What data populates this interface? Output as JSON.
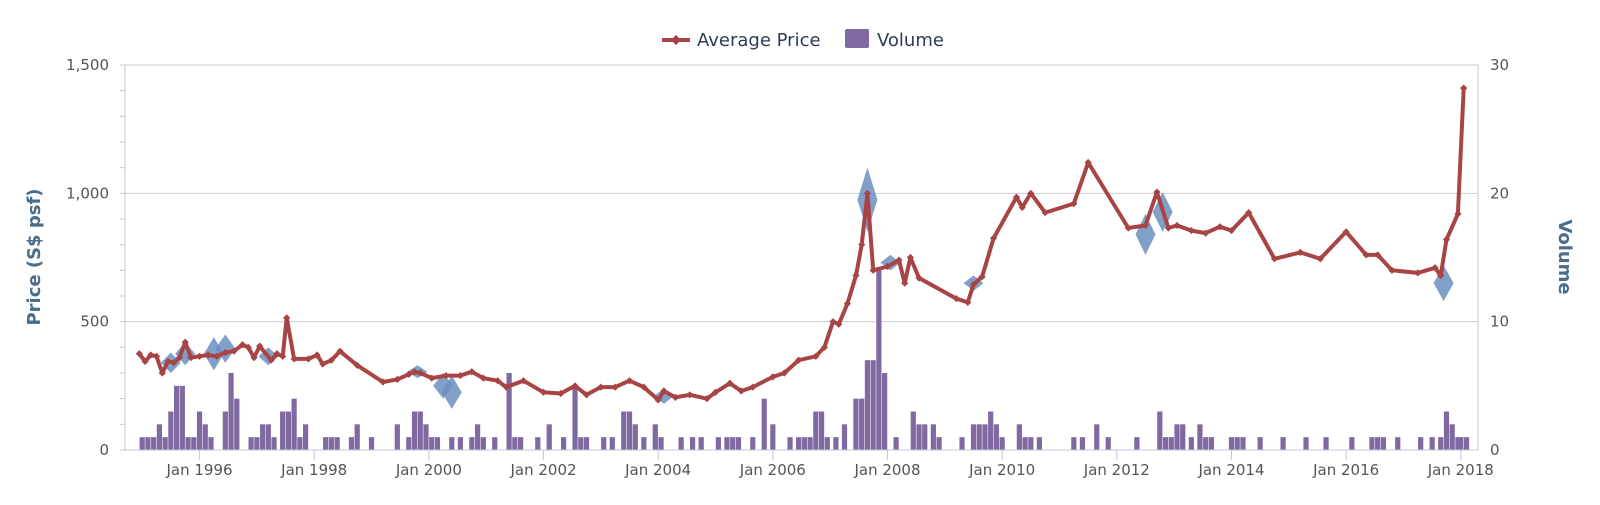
{
  "chart_data": {
    "type": "line+bar",
    "legend": {
      "placement": "top-center",
      "items": [
        {
          "name": "Average Price",
          "color": "#a84444",
          "marker": "diamond"
        },
        {
          "name": "Volume",
          "color": "#8068a0"
        }
      ]
    },
    "left_axis": {
      "title": "Price (S$ psf)",
      "range": [
        0,
        1500
      ],
      "ticks": [
        0,
        500,
        1000,
        1500
      ],
      "tick_labels": [
        "0",
        "500",
        "1,000",
        "1,500"
      ]
    },
    "right_axis": {
      "title": "Volume",
      "range": [
        0,
        30
      ],
      "ticks": [
        0,
        10,
        20,
        30
      ],
      "tick_labels": [
        "0",
        "10",
        "20",
        "30"
      ]
    },
    "x_axis": {
      "range": [
        1994.7,
        2018.3
      ],
      "ticks": [
        1996,
        1998,
        2000,
        2002,
        2004,
        2006,
        2008,
        2010,
        2012,
        2014,
        2016,
        2018
      ],
      "tick_labels": [
        "Jan 1996",
        "Jan 1998",
        "Jan 2000",
        "Jan 2002",
        "Jan 2004",
        "Jan 2006",
        "Jan 2008",
        "Jan 2010",
        "Jan 2012",
        "Jan 2014",
        "Jan 2016",
        "Jan 2018"
      ]
    },
    "grid": true,
    "colors": {
      "price": "#a84444",
      "volume": "#8068a0",
      "range": "#6b8fc0",
      "grid": "#c8ccd8",
      "axis": "#c0c8d8"
    },
    "price_series": [
      [
        1994.95,
        375
      ],
      [
        1995.05,
        345
      ],
      [
        1995.15,
        370
      ],
      [
        1995.25,
        365
      ],
      [
        1995.35,
        300
      ],
      [
        1995.45,
        345
      ],
      [
        1995.55,
        340
      ],
      [
        1995.65,
        360
      ],
      [
        1995.75,
        420
      ],
      [
        1995.85,
        360
      ],
      [
        1996.0,
        365
      ],
      [
        1996.15,
        370
      ],
      [
        1996.3,
        365
      ],
      [
        1996.45,
        380
      ],
      [
        1996.6,
        385
      ],
      [
        1996.75,
        410
      ],
      [
        1996.85,
        400
      ],
      [
        1996.95,
        360
      ],
      [
        1997.05,
        405
      ],
      [
        1997.25,
        350
      ],
      [
        1997.35,
        375
      ],
      [
        1997.45,
        365
      ],
      [
        1997.52,
        515
      ],
      [
        1997.65,
        355
      ],
      [
        1997.9,
        355
      ],
      [
        1998.05,
        370
      ],
      [
        1998.15,
        335
      ],
      [
        1998.3,
        350
      ],
      [
        1998.45,
        385
      ],
      [
        1998.75,
        330
      ],
      [
        1999.2,
        265
      ],
      [
        1999.45,
        275
      ],
      [
        1999.65,
        295
      ],
      [
        1999.75,
        305
      ],
      [
        1999.85,
        300
      ],
      [
        2000.05,
        280
      ],
      [
        2000.3,
        290
      ],
      [
        2000.55,
        290
      ],
      [
        2000.75,
        305
      ],
      [
        2000.95,
        280
      ],
      [
        2001.2,
        270
      ],
      [
        2001.35,
        245
      ],
      [
        2001.65,
        270
      ],
      [
        2002.0,
        225
      ],
      [
        2002.3,
        220
      ],
      [
        2002.55,
        250
      ],
      [
        2002.75,
        215
      ],
      [
        2003.0,
        245
      ],
      [
        2003.25,
        245
      ],
      [
        2003.5,
        270
      ],
      [
        2003.75,
        245
      ],
      [
        2004.0,
        195
      ],
      [
        2004.1,
        230
      ],
      [
        2004.3,
        205
      ],
      [
        2004.55,
        215
      ],
      [
        2004.85,
        200
      ],
      [
        2005.0,
        225
      ],
      [
        2005.25,
        260
      ],
      [
        2005.45,
        230
      ],
      [
        2005.65,
        245
      ],
      [
        2006.0,
        285
      ],
      [
        2006.2,
        300
      ],
      [
        2006.45,
        350
      ],
      [
        2006.75,
        365
      ],
      [
        2006.9,
        400
      ],
      [
        2007.05,
        500
      ],
      [
        2007.15,
        490
      ],
      [
        2007.3,
        570
      ],
      [
        2007.45,
        680
      ],
      [
        2007.55,
        800
      ],
      [
        2007.65,
        1000
      ],
      [
        2007.75,
        700
      ],
      [
        2008.0,
        715
      ],
      [
        2008.2,
        740
      ],
      [
        2008.3,
        650
      ],
      [
        2008.4,
        750
      ],
      [
        2008.55,
        670
      ],
      [
        2009.2,
        590
      ],
      [
        2009.4,
        575
      ],
      [
        2009.5,
        645
      ],
      [
        2009.65,
        675
      ],
      [
        2009.85,
        825
      ],
      [
        2010.25,
        985
      ],
      [
        2010.35,
        945
      ],
      [
        2010.5,
        1000
      ],
      [
        2010.75,
        925
      ],
      [
        2011.25,
        960
      ],
      [
        2011.5,
        1120
      ],
      [
        2012.2,
        865
      ],
      [
        2012.5,
        875
      ],
      [
        2012.7,
        1005
      ],
      [
        2012.9,
        865
      ],
      [
        2013.05,
        875
      ],
      [
        2013.3,
        855
      ],
      [
        2013.55,
        845
      ],
      [
        2013.8,
        870
      ],
      [
        2014.0,
        855
      ],
      [
        2014.3,
        925
      ],
      [
        2014.75,
        745
      ],
      [
        2015.2,
        770
      ],
      [
        2015.55,
        745
      ],
      [
        2016.0,
        850
      ],
      [
        2016.35,
        760
      ],
      [
        2016.55,
        760
      ],
      [
        2016.8,
        700
      ],
      [
        2017.25,
        690
      ],
      [
        2017.55,
        710
      ],
      [
        2017.65,
        680
      ],
      [
        2017.75,
        820
      ],
      [
        2017.95,
        920
      ],
      [
        2018.05,
        1410
      ]
    ],
    "range_series": [
      [
        1995.5,
        300,
        380
      ],
      [
        1995.75,
        330,
        420
      ],
      [
        1996.25,
        310,
        440
      ],
      [
        1996.45,
        340,
        450
      ],
      [
        1997.2,
        330,
        400
      ],
      [
        1999.8,
        280,
        330
      ],
      [
        2000.25,
        200,
        300
      ],
      [
        2000.4,
        160,
        290
      ],
      [
        2004.1,
        180,
        240
      ],
      [
        2007.65,
        850,
        1100
      ],
      [
        2008.05,
        700,
        760
      ],
      [
        2009.5,
        620,
        680
      ],
      [
        2012.5,
        760,
        920
      ],
      [
        2012.8,
        850,
        1005
      ],
      [
        2017.7,
        580,
        720
      ]
    ],
    "volume_series": [
      [
        1995.0,
        1
      ],
      [
        1995.1,
        1
      ],
      [
        1995.2,
        1
      ],
      [
        1995.3,
        2
      ],
      [
        1995.4,
        1
      ],
      [
        1995.5,
        3
      ],
      [
        1995.6,
        5
      ],
      [
        1995.7,
        5
      ],
      [
        1995.8,
        1
      ],
      [
        1995.9,
        1
      ],
      [
        1996.0,
        3
      ],
      [
        1996.1,
        2
      ],
      [
        1996.2,
        1
      ],
      [
        1996.45,
        3
      ],
      [
        1996.55,
        6
      ],
      [
        1996.65,
        4
      ],
      [
        1996.9,
        1
      ],
      [
        1997.0,
        1
      ],
      [
        1997.1,
        2
      ],
      [
        1997.2,
        2
      ],
      [
        1997.3,
        1
      ],
      [
        1997.45,
        3
      ],
      [
        1997.55,
        3
      ],
      [
        1997.65,
        4
      ],
      [
        1997.75,
        1
      ],
      [
        1997.85,
        2
      ],
      [
        1998.2,
        1
      ],
      [
        1998.3,
        1
      ],
      [
        1998.4,
        1
      ],
      [
        1998.65,
        1
      ],
      [
        1998.75,
        2
      ],
      [
        1999.0,
        1
      ],
      [
        1999.45,
        2
      ],
      [
        1999.65,
        1
      ],
      [
        1999.75,
        3
      ],
      [
        1999.85,
        3
      ],
      [
        1999.95,
        2
      ],
      [
        2000.05,
        1
      ],
      [
        2000.15,
        1
      ],
      [
        2000.4,
        1
      ],
      [
        2000.55,
        1
      ],
      [
        2000.75,
        1
      ],
      [
        2000.85,
        2
      ],
      [
        2000.95,
        1
      ],
      [
        2001.15,
        1
      ],
      [
        2001.4,
        6
      ],
      [
        2001.5,
        1
      ],
      [
        2001.6,
        1
      ],
      [
        2001.9,
        1
      ],
      [
        2002.1,
        2
      ],
      [
        2002.35,
        1
      ],
      [
        2002.55,
        5
      ],
      [
        2002.65,
        1
      ],
      [
        2002.75,
        1
      ],
      [
        2003.05,
        1
      ],
      [
        2003.2,
        1
      ],
      [
        2003.4,
        3
      ],
      [
        2003.5,
        3
      ],
      [
        2003.6,
        2
      ],
      [
        2003.75,
        1
      ],
      [
        2003.95,
        2
      ],
      [
        2004.05,
        1
      ],
      [
        2004.4,
        1
      ],
      [
        2004.6,
        1
      ],
      [
        2004.75,
        1
      ],
      [
        2005.05,
        1
      ],
      [
        2005.2,
        1
      ],
      [
        2005.3,
        1
      ],
      [
        2005.4,
        1
      ],
      [
        2005.65,
        1
      ],
      [
        2005.85,
        4
      ],
      [
        2006.0,
        2
      ],
      [
        2006.3,
        1
      ],
      [
        2006.45,
        1
      ],
      [
        2006.55,
        1
      ],
      [
        2006.65,
        1
      ],
      [
        2006.75,
        3
      ],
      [
        2006.85,
        3
      ],
      [
        2006.95,
        1
      ],
      [
        2007.1,
        1
      ],
      [
        2007.25,
        2
      ],
      [
        2007.45,
        4
      ],
      [
        2007.55,
        4
      ],
      [
        2007.65,
        7
      ],
      [
        2007.75,
        7
      ],
      [
        2007.85,
        14
      ],
      [
        2007.95,
        6
      ],
      [
        2008.15,
        1
      ],
      [
        2008.45,
        3
      ],
      [
        2008.55,
        2
      ],
      [
        2008.65,
        2
      ],
      [
        2008.8,
        2
      ],
      [
        2008.9,
        1
      ],
      [
        2009.3,
        1
      ],
      [
        2009.5,
        2
      ],
      [
        2009.6,
        2
      ],
      [
        2009.7,
        2
      ],
      [
        2009.8,
        3
      ],
      [
        2009.9,
        2
      ],
      [
        2010.0,
        1
      ],
      [
        2010.3,
        2
      ],
      [
        2010.4,
        1
      ],
      [
        2010.5,
        1
      ],
      [
        2010.65,
        1
      ],
      [
        2011.25,
        1
      ],
      [
        2011.4,
        1
      ],
      [
        2011.65,
        2
      ],
      [
        2011.85,
        1
      ],
      [
        2012.35,
        1
      ],
      [
        2012.75,
        3
      ],
      [
        2012.85,
        1
      ],
      [
        2012.95,
        1
      ],
      [
        2013.05,
        2
      ],
      [
        2013.15,
        2
      ],
      [
        2013.3,
        1
      ],
      [
        2013.45,
        2
      ],
      [
        2013.55,
        1
      ],
      [
        2013.65,
        1
      ],
      [
        2014.0,
        1
      ],
      [
        2014.1,
        1
      ],
      [
        2014.2,
        1
      ],
      [
        2014.5,
        1
      ],
      [
        2014.9,
        1
      ],
      [
        2015.3,
        1
      ],
      [
        2015.65,
        1
      ],
      [
        2016.1,
        1
      ],
      [
        2016.45,
        1
      ],
      [
        2016.55,
        1
      ],
      [
        2016.65,
        1
      ],
      [
        2016.9,
        1
      ],
      [
        2017.3,
        1
      ],
      [
        2017.5,
        1
      ],
      [
        2017.65,
        1
      ],
      [
        2017.75,
        3
      ],
      [
        2017.85,
        2
      ],
      [
        2017.95,
        1
      ],
      [
        2018.0,
        1
      ],
      [
        2018.1,
        1
      ]
    ]
  }
}
